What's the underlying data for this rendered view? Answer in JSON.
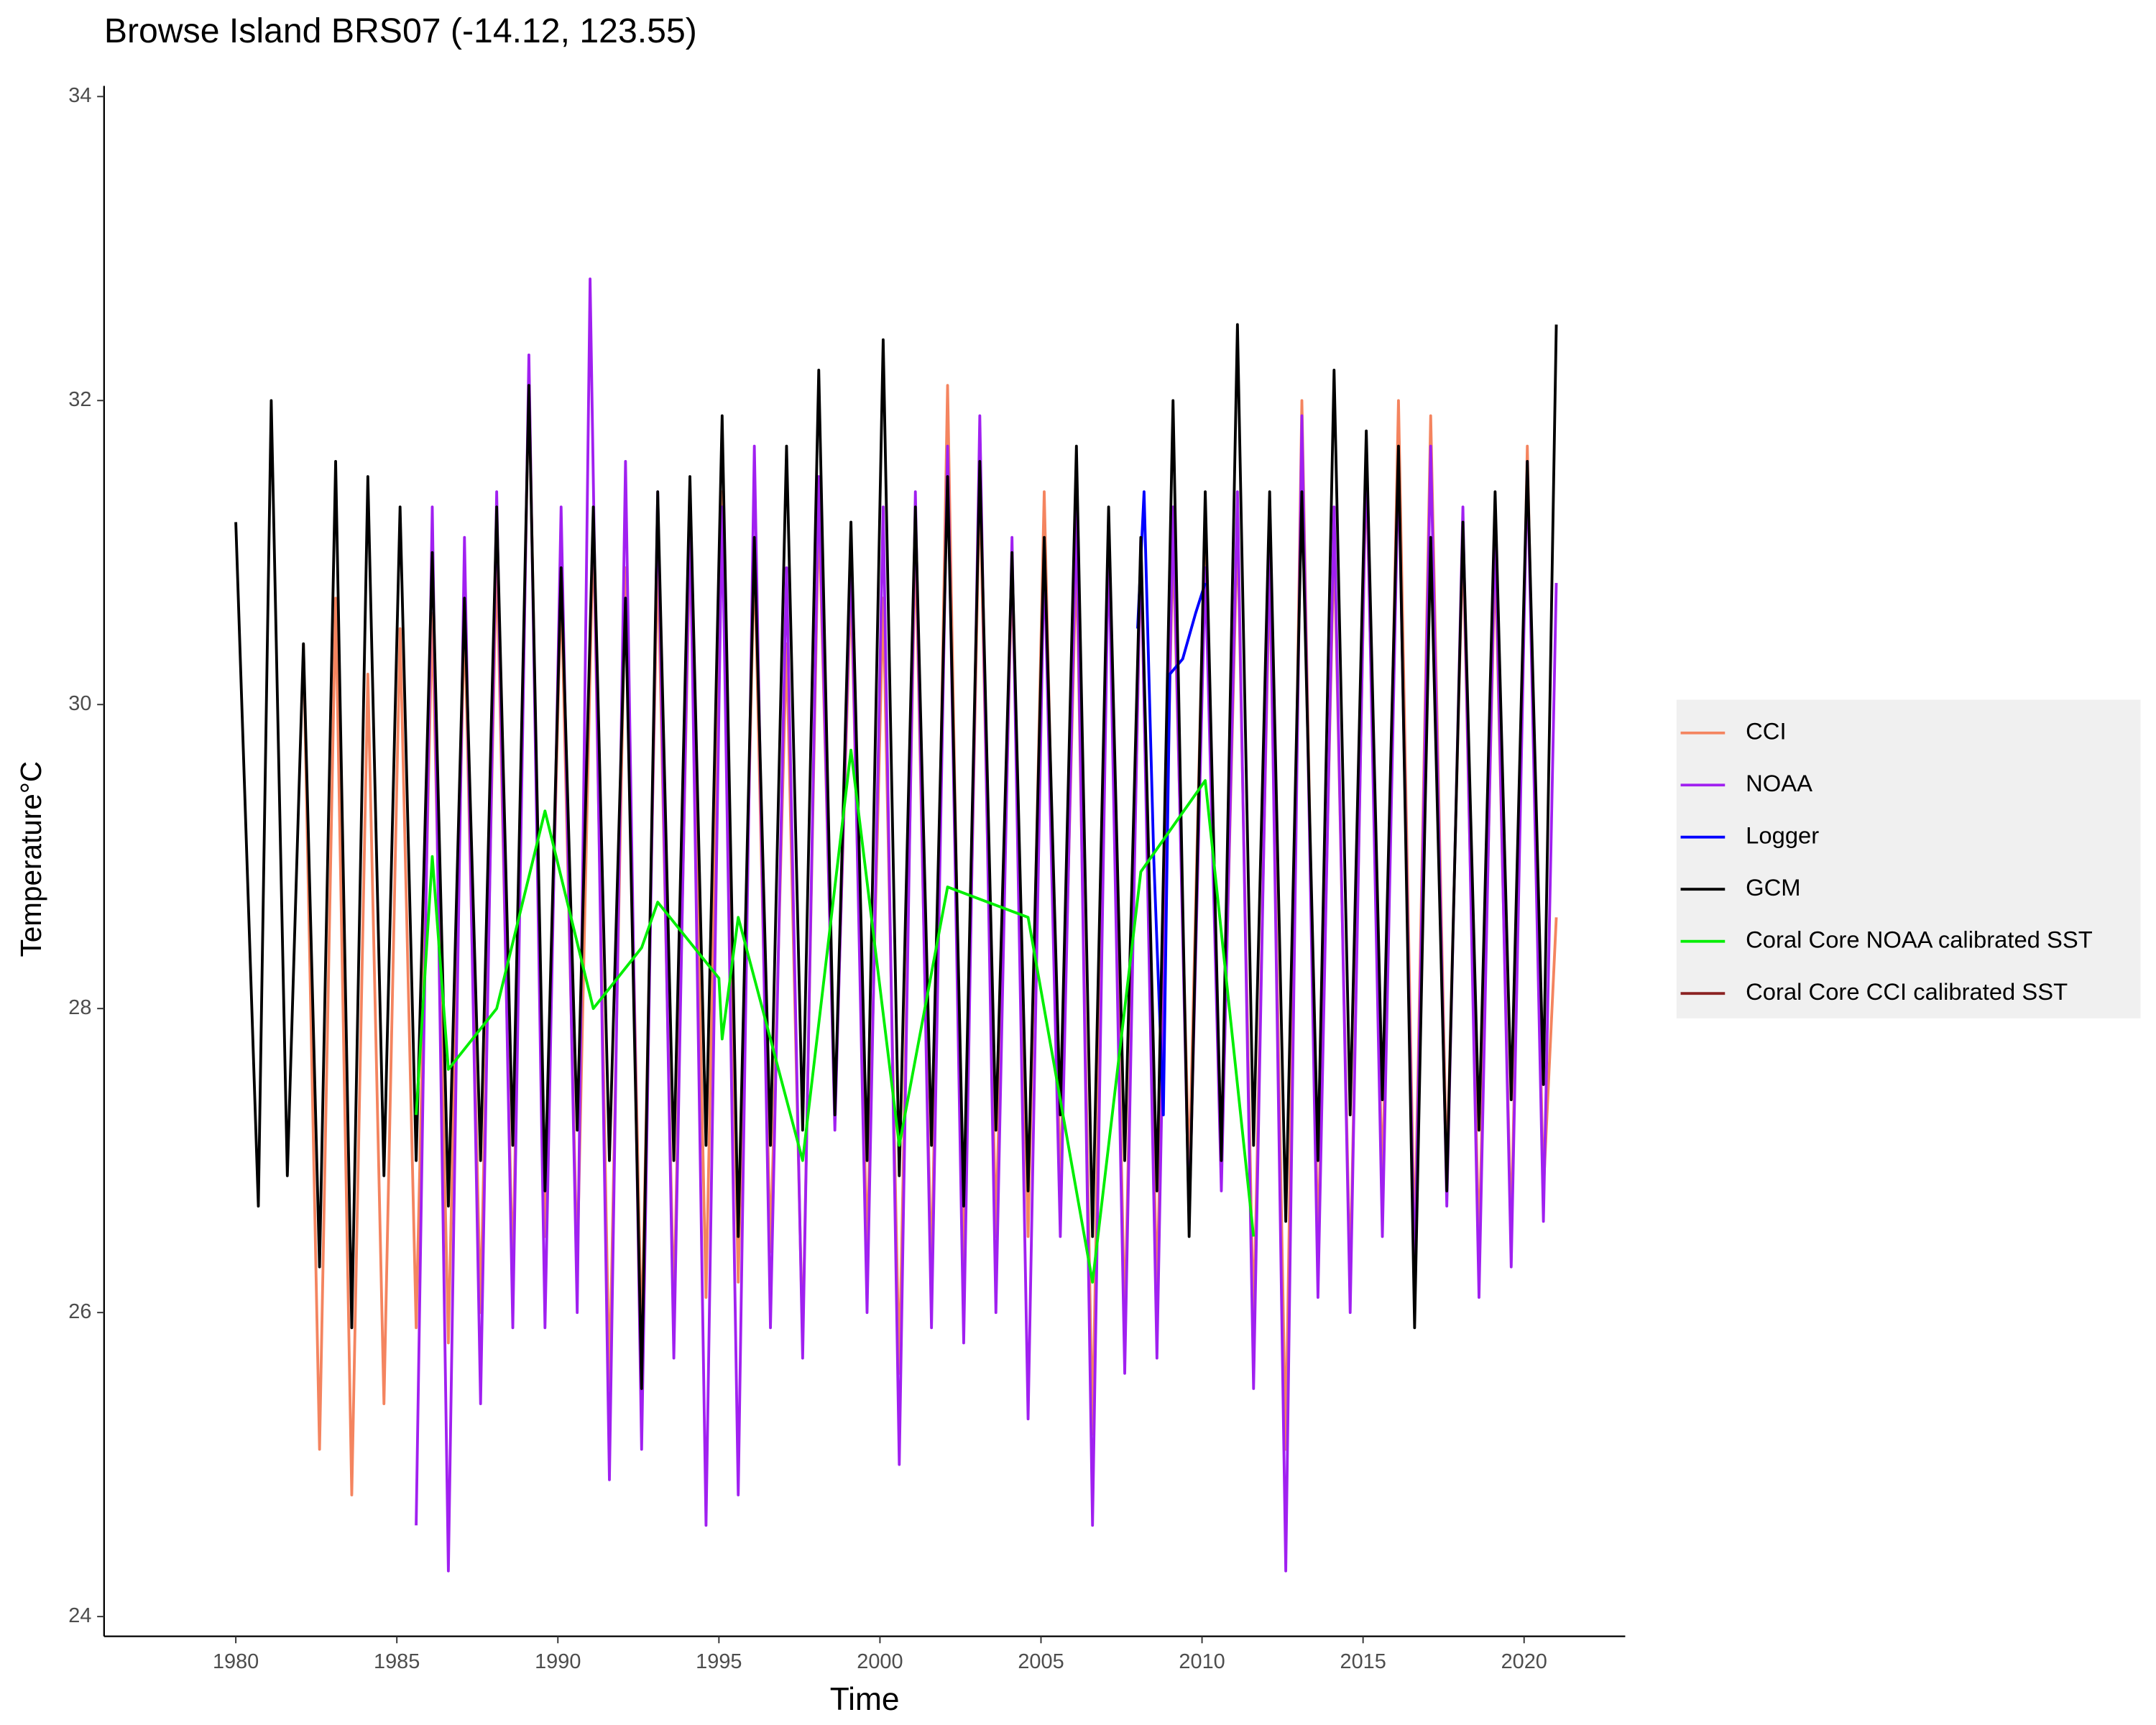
{
  "chart_data": {
    "type": "line",
    "title": "Browse Island BRS07 (-14.12, 123.55)",
    "x_label": "Time",
    "y_label": "Temperature°C",
    "xlim": [
      1975.91,
      2023.14
    ],
    "ylim": [
      23.87,
      34.07
    ],
    "xticks": [
      1980,
      1985,
      1990,
      1995,
      2000,
      2005,
      2010,
      2015,
      2020
    ],
    "yticks": [
      24,
      26,
      28,
      30,
      32,
      34
    ],
    "grid": false,
    "legend_position": "right",
    "series": [
      {
        "name": "CCI",
        "color": "#f4845f",
        "x": [
          1982.1,
          1982.6,
          1983.1,
          1983.6,
          1984.1,
          1984.6,
          1985.1,
          1985.6,
          1986.1,
          1986.6,
          1987.1,
          1987.6,
          1988.1,
          1988.6,
          1989.1,
          1989.6,
          1990.1,
          1990.6,
          1991.1,
          1991.6,
          1992.1,
          1992.6,
          1993.1,
          1993.6,
          1994.1,
          1994.6,
          1995.1,
          1995.6,
          1996.1,
          1996.6,
          1997.1,
          1997.6,
          1998.1,
          1998.6,
          1999.1,
          1999.6,
          2000.1,
          2000.6,
          2001.1,
          2001.6,
          2002.1,
          2002.6,
          2003.1,
          2003.6,
          2004.1,
          2004.6,
          2005.1,
          2005.6,
          2006.1,
          2006.6,
          2007.1,
          2007.6,
          2008.1,
          2008.6,
          2009.1,
          2009.6,
          2010.1,
          2010.6,
          2011.1,
          2011.6,
          2012.1,
          2012.6,
          2013.1,
          2013.6,
          2014.1,
          2014.6,
          2015.1,
          2015.6,
          2016.1,
          2016.6,
          2017.1,
          2017.6,
          2018.1,
          2018.6,
          2019.1,
          2019.6,
          2020.1,
          2020.6,
          2021.0
        ],
        "values": [
          30.4,
          25.1,
          30.7,
          24.8,
          30.2,
          25.4,
          30.5,
          25.9,
          30.6,
          25.8,
          30.6,
          26.0,
          31.0,
          26.2,
          32.2,
          26.5,
          30.8,
          26.3,
          31.2,
          25.5,
          30.9,
          25.8,
          31.0,
          26.0,
          31.1,
          26.1,
          31.4,
          26.2,
          31.0,
          26.4,
          30.4,
          25.8,
          31.3,
          27.3,
          30.8,
          26.4,
          30.7,
          25.6,
          31.1,
          26.2,
          32.1,
          26.2,
          31.5,
          26.5,
          30.9,
          26.5,
          31.4,
          26.8,
          31.0,
          25.2,
          31.2,
          25.9,
          31.0,
          26.1,
          31.1,
          26.9,
          31.3,
          26.9,
          31.2,
          25.9,
          30.9,
          25.1,
          32.0,
          26.4,
          31.1,
          26.2,
          31.6,
          26.8,
          32.0,
          26.4,
          31.9,
          26.9,
          31.1,
          26.4,
          31.0,
          26.5,
          31.7,
          26.8,
          28.6
        ]
      },
      {
        "name": "NOAA",
        "color": "#a020f0",
        "x": [
          1985.6,
          1986.1,
          1986.6,
          1987.1,
          1987.6,
          1988.1,
          1988.6,
          1989.1,
          1989.6,
          1990.1,
          1990.6,
          1991.0,
          1991.6,
          1992.1,
          1992.6,
          1993.1,
          1993.6,
          1994.1,
          1994.6,
          1995.1,
          1995.6,
          1996.1,
          1996.6,
          1997.1,
          1997.6,
          1998.1,
          1998.6,
          1999.1,
          1999.6,
          2000.1,
          2000.6,
          2001.1,
          2001.6,
          2002.1,
          2002.6,
          2003.1,
          2003.6,
          2004.1,
          2004.6,
          2005.1,
          2005.6,
          2006.1,
          2006.6,
          2007.1,
          2007.6,
          2008.1,
          2008.6,
          2009.1,
          2009.6,
          2010.1,
          2010.6,
          2011.1,
          2011.6,
          2012.1,
          2012.6,
          2013.1,
          2013.6,
          2014.1,
          2014.6,
          2015.1,
          2015.6,
          2016.1,
          2016.6,
          2017.1,
          2017.6,
          2018.1,
          2018.6,
          2019.1,
          2019.6,
          2020.1,
          2020.6,
          2021.0
        ],
        "values": [
          24.6,
          31.3,
          24.3,
          31.1,
          25.4,
          31.4,
          25.9,
          32.3,
          25.9,
          31.3,
          26.0,
          32.8,
          24.9,
          31.6,
          25.1,
          31.4,
          25.7,
          31.3,
          24.6,
          31.3,
          24.8,
          31.7,
          25.9,
          30.9,
          25.7,
          31.5,
          27.2,
          31.0,
          26.0,
          31.3,
          25.0,
          31.4,
          25.9,
          31.7,
          25.8,
          31.9,
          26.0,
          31.1,
          25.3,
          31.0,
          26.5,
          31.3,
          24.6,
          31.1,
          25.6,
          31.1,
          25.7,
          31.3,
          26.6,
          30.9,
          26.8,
          31.4,
          25.5,
          31.1,
          24.3,
          31.9,
          26.1,
          31.3,
          26.0,
          31.7,
          26.5,
          31.6,
          26.2,
          31.7,
          26.7,
          31.3,
          26.1,
          31.2,
          26.3,
          31.6,
          26.6,
          30.8
        ]
      },
      {
        "name": "Logger",
        "color": "#0000ff",
        "x": [
          2008.0,
          2008.2,
          2008.5,
          2008.8,
          2009.0,
          2009.4,
          2009.8,
          2010.1
        ],
        "values": [
          30.5,
          31.4,
          29.0,
          27.3,
          30.2,
          30.3,
          30.6,
          30.8
        ]
      },
      {
        "name": "GCM",
        "color": "#000000",
        "x": [
          1980.0,
          1980.7,
          1981.1,
          1981.6,
          1982.1,
          1982.6,
          1983.1,
          1983.6,
          1984.1,
          1984.6,
          1985.1,
          1985.6,
          1986.1,
          1986.6,
          1987.1,
          1987.6,
          1988.1,
          1988.6,
          1989.1,
          1989.6,
          1990.1,
          1990.6,
          1991.1,
          1991.6,
          1992.1,
          1992.6,
          1993.1,
          1993.6,
          1994.1,
          1994.6,
          1995.1,
          1995.6,
          1996.1,
          1996.6,
          1997.1,
          1997.6,
          1998.1,
          1998.6,
          1999.1,
          1999.6,
          2000.1,
          2000.6,
          2001.1,
          2001.6,
          2002.1,
          2002.6,
          2003.1,
          2003.6,
          2004.1,
          2004.6,
          2005.1,
          2005.6,
          2006.1,
          2006.6,
          2007.1,
          2007.6,
          2008.1,
          2008.6,
          2009.1,
          2009.6,
          2010.1,
          2010.6,
          2011.1,
          2011.6,
          2012.1,
          2012.6,
          2013.1,
          2013.6,
          2014.1,
          2014.6,
          2015.1,
          2015.6,
          2016.1,
          2016.6,
          2017.1,
          2017.6,
          2018.1,
          2018.6,
          2019.1,
          2019.6,
          2020.1,
          2020.6,
          2021.0
        ],
        "values": [
          31.2,
          26.7,
          32.0,
          26.9,
          30.4,
          26.3,
          31.6,
          25.9,
          31.5,
          26.9,
          31.3,
          27.0,
          31.0,
          26.7,
          30.7,
          27.0,
          31.3,
          27.1,
          32.1,
          26.8,
          30.9,
          27.2,
          31.3,
          27.0,
          30.7,
          25.5,
          31.4,
          27.0,
          31.5,
          27.1,
          31.9,
          26.5,
          31.1,
          27.1,
          31.7,
          27.2,
          32.2,
          27.3,
          31.2,
          27.0,
          32.4,
          26.9,
          31.3,
          27.1,
          31.5,
          26.7,
          31.6,
          27.2,
          31.0,
          26.8,
          31.1,
          27.3,
          31.7,
          26.5,
          31.3,
          27.0,
          31.1,
          26.8,
          32.0,
          26.5,
          31.4,
          27.0,
          32.5,
          27.1,
          31.4,
          26.6,
          31.4,
          27.0,
          32.2,
          27.3,
          31.8,
          27.4,
          31.7,
          25.9,
          31.1,
          26.8,
          31.2,
          27.2,
          31.4,
          27.4,
          31.6,
          27.5,
          32.5
        ]
      },
      {
        "name": "Coral Core NOAA calibrated SST",
        "color": "#00ee00",
        "x": [
          1985.6,
          1986.1,
          1986.6,
          1988.1,
          1989.6,
          1991.1,
          1992.6,
          1993.1,
          1995.0,
          1995.1,
          1995.6,
          1997.6,
          1999.1,
          2000.6,
          2002.1,
          2004.6,
          2006.6,
          2008.1,
          2010.1,
          2011.6
        ],
        "values": [
          27.3,
          29.0,
          27.6,
          28.0,
          29.3,
          28.0,
          28.4,
          28.7,
          28.2,
          27.8,
          28.6,
          27.0,
          29.7,
          27.1,
          28.8,
          28.6,
          26.2,
          28.9,
          29.5,
          26.5
        ]
      },
      {
        "name": "Coral Core CCI calibrated SST",
        "color": "#8b2323",
        "x": [],
        "values": []
      }
    ]
  }
}
